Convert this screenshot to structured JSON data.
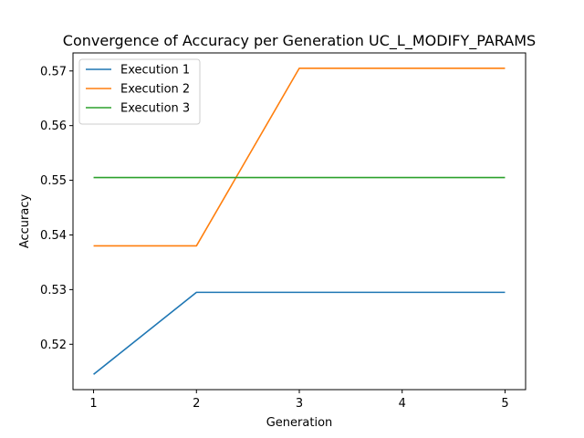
{
  "chart_data": {
    "type": "line",
    "title": "Convergence of Accuracy per Generation UC_L_MODIFY_PARAMS",
    "xlabel": "Generation",
    "ylabel": "Accuracy",
    "x": [
      1,
      2,
      3,
      4,
      5
    ],
    "x_ticks": [
      "1",
      "2",
      "3",
      "4",
      "5"
    ],
    "y_ticks": [
      "0.52",
      "0.53",
      "0.54",
      "0.55",
      "0.56",
      "0.57"
    ],
    "xlim": [
      0.8,
      5.2
    ],
    "ylim": [
      0.5117,
      0.5733
    ],
    "grid": false,
    "legend_position": "top-left",
    "series": [
      {
        "name": "Execution 1",
        "color": "#1f77b4",
        "values": [
          0.5145,
          0.5295,
          0.5295,
          0.5295,
          0.5295
        ]
      },
      {
        "name": "Execution 2",
        "color": "#ff7f0e",
        "values": [
          0.538,
          0.538,
          0.5705,
          0.5705,
          0.5705
        ]
      },
      {
        "name": "Execution 3",
        "color": "#2ca02c",
        "values": [
          0.5505,
          0.5505,
          0.5505,
          0.5505,
          0.5505
        ]
      }
    ]
  }
}
